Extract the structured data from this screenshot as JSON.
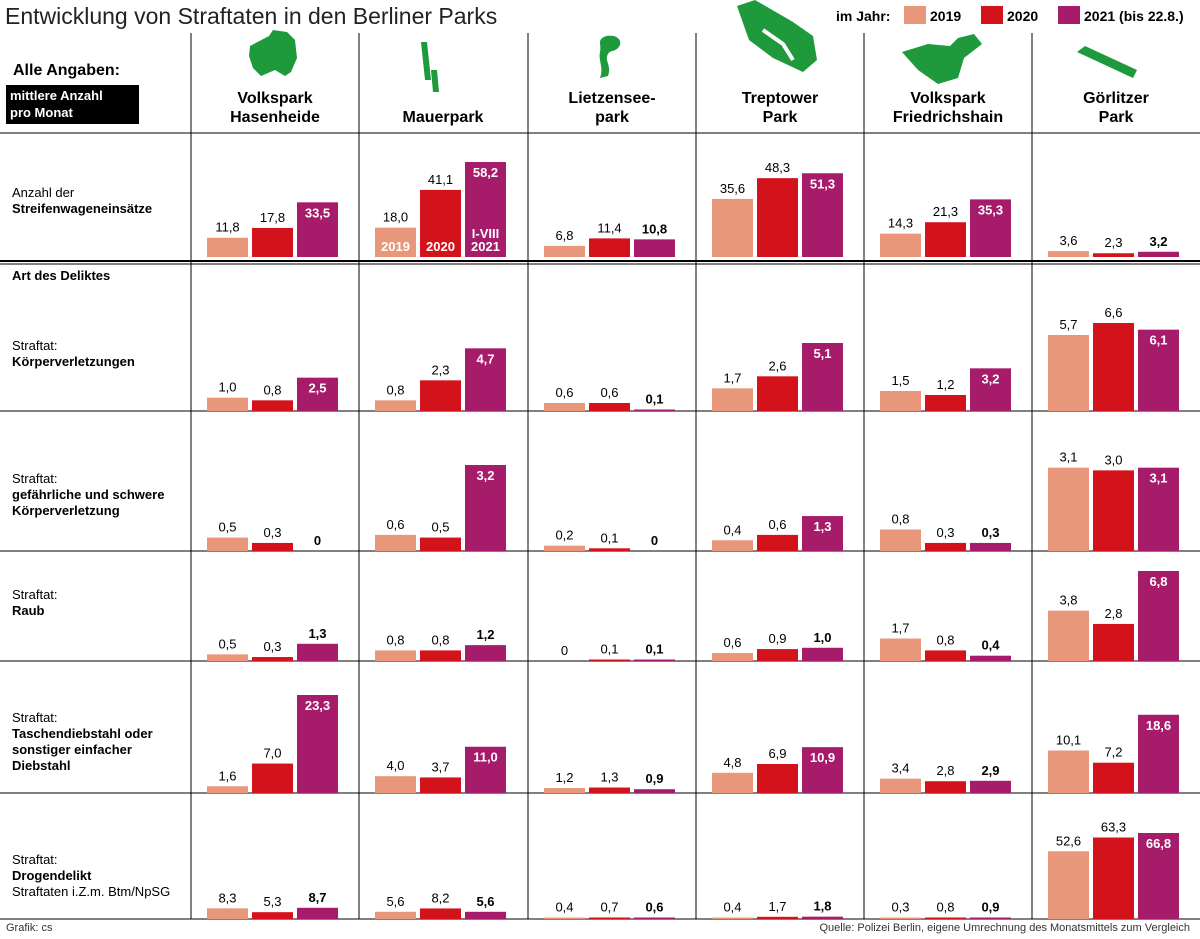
{
  "title": "Entwicklung von Straftaten in den Berliner Parks",
  "legend": {
    "prefix": "im Jahr:",
    "items": [
      {
        "label": "2019",
        "color": "#E8977A"
      },
      {
        "label": "2020",
        "color": "#D4121B"
      },
      {
        "label": "2021 (bis 22.8.)",
        "color": "#A71C6A"
      }
    ]
  },
  "info_title": "Alle Angaben:",
  "info_note_line1": "mittlere Anzahl",
  "info_note_line2": "pro Monat",
  "park_icon_color": "#1E9A3C",
  "section_label": "Art des Deliktes",
  "footer_left": "Grafik: cs",
  "footer_right": "Quelle: Polizei Berlin, eigene Umrechnung des Monatsmittels zum Vergleich",
  "chart_data": {
    "type": "bar",
    "title": "Entwicklung von Straftaten in den Berliner Parks",
    "units": "mittlere Anzahl pro Monat",
    "series_names": [
      "2019",
      "2020",
      "2021 (bis 22.8.)"
    ],
    "parks": [
      {
        "line1": "Volkspark",
        "line2": "Hasenheide"
      },
      {
        "line1": "Mauerpark",
        "line2": ""
      },
      {
        "line1": "Lietzensee-",
        "line2": "park"
      },
      {
        "line1": "Treptower",
        "line2": "Park"
      },
      {
        "line1": "Volkspark",
        "line2": "Friedrichshain"
      },
      {
        "line1": "Görlitzer",
        "line2": "Park"
      }
    ],
    "bar_inline_labels": [
      "2019",
      "2020",
      "I-VIII",
      "2021"
    ],
    "rows": [
      {
        "label1": "Anzahl der",
        "label2": "Streifenwageneinsätze",
        "label3": "",
        "label4": "",
        "max": 58.2,
        "values": [
          [
            "11,8",
            "17,8",
            "33,5"
          ],
          [
            "18,0",
            "41,1",
            "58,2"
          ],
          [
            "6,8",
            "11,4",
            "10,8"
          ],
          [
            "35,6",
            "48,3",
            "51,3"
          ],
          [
            "14,3",
            "21,3",
            "35,3"
          ],
          [
            "3,6",
            "2,3",
            "3,2"
          ]
        ]
      },
      {
        "label1": "Straftat:",
        "label2": "Körperverletzungen",
        "label3": "",
        "label4": "",
        "max": 6.6,
        "values": [
          [
            "1,0",
            "0,8",
            "2,5"
          ],
          [
            "0,8",
            "2,3",
            "4,7"
          ],
          [
            "0,6",
            "0,6",
            "0,1"
          ],
          [
            "1,7",
            "2,6",
            "5,1"
          ],
          [
            "1,5",
            "1,2",
            "3,2"
          ],
          [
            "5,7",
            "6,6",
            "6,1"
          ]
        ]
      },
      {
        "label1": "Straftat:",
        "label2": "gefährliche und schwere",
        "label3": "Körperverletzung",
        "label4": "",
        "max": 3.2,
        "values": [
          [
            "0,5",
            "0,3",
            "0"
          ],
          [
            "0,6",
            "0,5",
            "3,2"
          ],
          [
            "0,2",
            "0,1",
            "0"
          ],
          [
            "0,4",
            "0,6",
            "1,3"
          ],
          [
            "0,8",
            "0,3",
            "0,3"
          ],
          [
            "3,1",
            "3,0",
            "3,1"
          ]
        ]
      },
      {
        "label1": "Straftat:",
        "label2": "Raub",
        "label3": "",
        "label4": "",
        "max": 6.8,
        "values": [
          [
            "0,5",
            "0,3",
            "1,3"
          ],
          [
            "0,8",
            "0,8",
            "1,2"
          ],
          [
            "0",
            "0,1",
            "0,1"
          ],
          [
            "0,6",
            "0,9",
            "1,0"
          ],
          [
            "1,7",
            "0,8",
            "0,4"
          ],
          [
            "3,8",
            "2,8",
            "6,8"
          ]
        ]
      },
      {
        "label1": "Straftat:",
        "label2": "Taschendiebstahl oder",
        "label3": "sonstiger einfacher",
        "label4": "Diebstahl",
        "max": 23.3,
        "values": [
          [
            "1,6",
            "7,0",
            "23,3"
          ],
          [
            "4,0",
            "3,7",
            "11,0"
          ],
          [
            "1,2",
            "1,3",
            "0,9"
          ],
          [
            "4,8",
            "6,9",
            "10,9"
          ],
          [
            "3,4",
            "2,8",
            "2,9"
          ],
          [
            "10,1",
            "7,2",
            "18,6"
          ]
        ]
      },
      {
        "label1": "Straftat:",
        "label2": "Drogendelikt",
        "label3": "",
        "label4": "Straftaten i.Z.m. Btm/NpSG",
        "max": 66.8,
        "values": [
          [
            "8,3",
            "5,3",
            "8,7"
          ],
          [
            "5,6",
            "8,2",
            "5,6"
          ],
          [
            "0,4",
            "0,7",
            "0,6"
          ],
          [
            "0,4",
            "1,7",
            "1,8"
          ],
          [
            "0,3",
            "0,8",
            "0,9"
          ],
          [
            "52,6",
            "63,3",
            "66,8"
          ]
        ]
      }
    ]
  }
}
